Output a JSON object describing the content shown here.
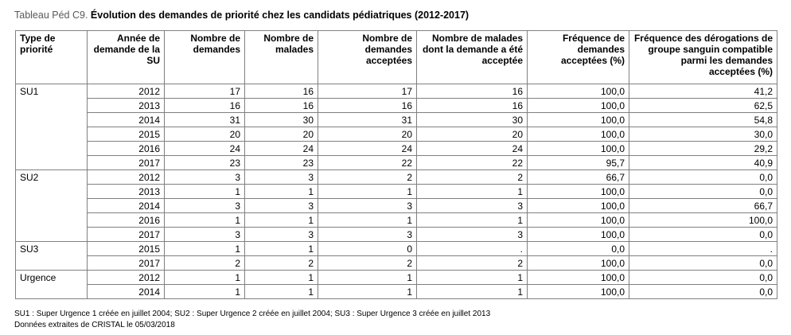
{
  "title": {
    "prefix": "Tableau Péd C9.",
    "main": "Évolution des demandes de priorité chez les candidats pédiatriques (2012-2017)"
  },
  "columns": [
    "Type de priorité",
    "Année de demande de la SU",
    "Nombre de demandes",
    "Nombre de malades",
    "Nombre de demandes acceptées",
    "Nombre de malades dont la demande a été acceptée",
    "Fréquence de demandes acceptées (%)",
    "Fréquence des dérogations de groupe sanguin compatible parmi les demandes acceptées (%)"
  ],
  "groups": [
    {
      "type": "SU1",
      "rows": [
        [
          "2012",
          "17",
          "16",
          "17",
          "16",
          "100,0",
          "41,2"
        ],
        [
          "2013",
          "16",
          "16",
          "16",
          "16",
          "100,0",
          "62,5"
        ],
        [
          "2014",
          "31",
          "30",
          "31",
          "30",
          "100,0",
          "54,8"
        ],
        [
          "2015",
          "20",
          "20",
          "20",
          "20",
          "100,0",
          "30,0"
        ],
        [
          "2016",
          "24",
          "24",
          "24",
          "24",
          "100,0",
          "29,2"
        ],
        [
          "2017",
          "23",
          "23",
          "22",
          "22",
          "95,7",
          "40,9"
        ]
      ]
    },
    {
      "type": "SU2",
      "rows": [
        [
          "2012",
          "3",
          "3",
          "2",
          "2",
          "66,7",
          "0,0"
        ],
        [
          "2013",
          "1",
          "1",
          "1",
          "1",
          "100,0",
          "0,0"
        ],
        [
          "2014",
          "3",
          "3",
          "3",
          "3",
          "100,0",
          "66,7"
        ],
        [
          "2016",
          "1",
          "1",
          "1",
          "1",
          "100,0",
          "100,0"
        ],
        [
          "2017",
          "3",
          "3",
          "3",
          "3",
          "100,0",
          "0,0"
        ]
      ]
    },
    {
      "type": "SU3",
      "rows": [
        [
          "2015",
          "1",
          "1",
          "0",
          ".",
          "0,0",
          "."
        ],
        [
          "2017",
          "2",
          "2",
          "2",
          "2",
          "100,0",
          "0,0"
        ]
      ]
    },
    {
      "type": "Urgence",
      "rows": [
        [
          "2012",
          "1",
          "1",
          "1",
          "1",
          "100,0",
          "0,0"
        ],
        [
          "2014",
          "1",
          "1",
          "1",
          "1",
          "100,0",
          "0,0"
        ]
      ]
    }
  ],
  "footnotes": [
    "SU1 : Super Urgence 1 créée en juillet 2004; SU2 : Super Urgence 2 créée en juillet 2004; SU3 : Super Urgence 3 créée en juillet 2013",
    "Données extraites de CRISTAL le 05/03/2018"
  ]
}
